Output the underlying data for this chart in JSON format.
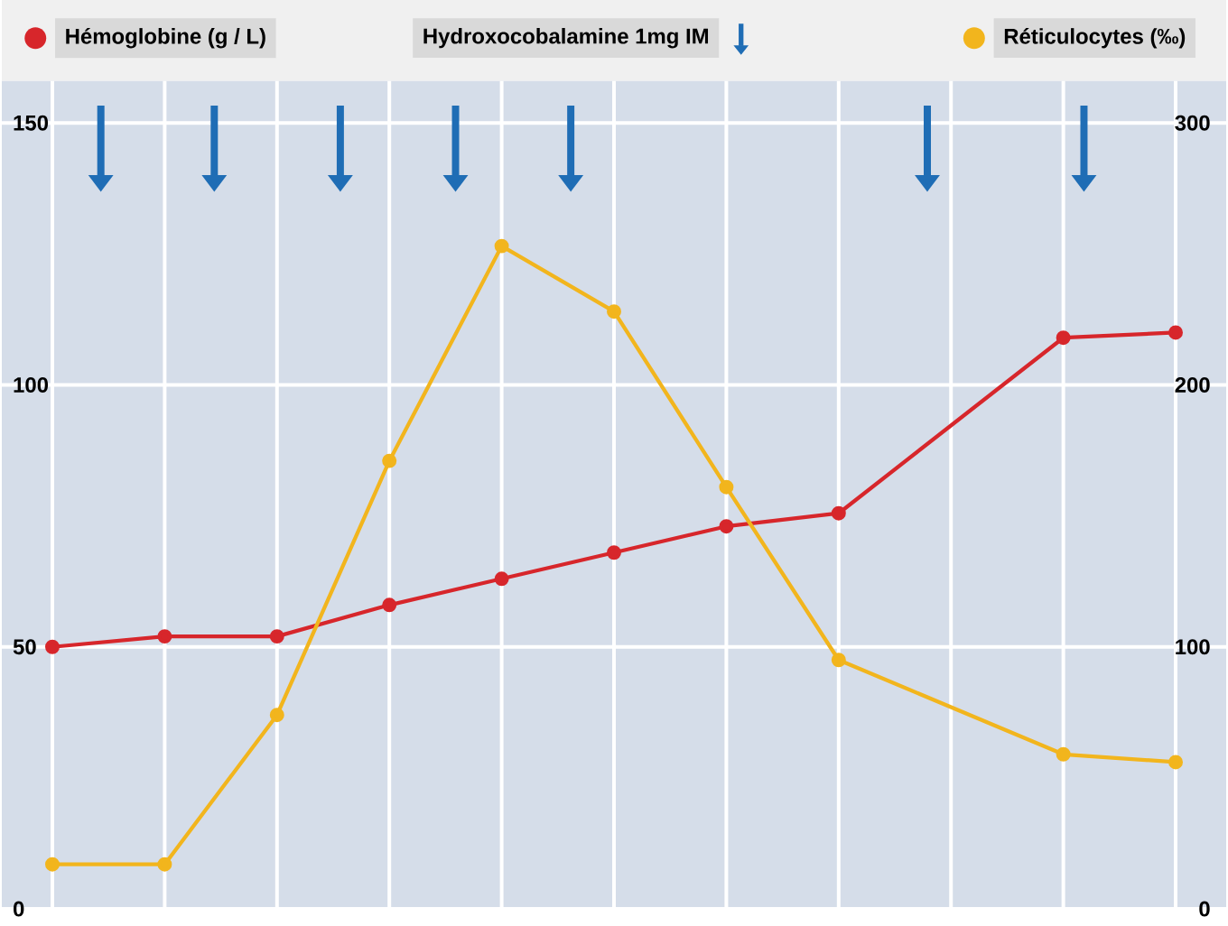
{
  "chart_data": {
    "type": "line",
    "marker": "circle",
    "grid": true,
    "legend": "top",
    "tick_labels": "y",
    "categories": [
      null,
      null,
      null,
      null,
      null,
      null,
      null,
      null,
      null,
      null,
      null
    ],
    "ylim": [
      0,
      158
    ],
    "yticks": [
      0,
      50,
      100,
      150
    ],
    "y2lim": [
      0,
      316
    ],
    "y2ticks": [
      0,
      100,
      200,
      300
    ],
    "annotations": [
      "Hydroxocobalamine 1mg IM"
    ],
    "series": [
      {
        "name": "Hémoglobine (g / L)",
        "color": "#d7262b",
        "values": [
          50,
          52,
          52,
          58,
          63,
          68,
          73,
          75.5,
          null,
          109,
          110
        ]
      },
      {
        "name": "Réticulocytes (‰)",
        "axis": "y2",
        "color": "#f2b51d",
        "values": [
          17,
          17,
          74,
          171,
          253,
          228,
          161,
          95,
          null,
          59,
          56
        ]
      }
    ]
  }
}
